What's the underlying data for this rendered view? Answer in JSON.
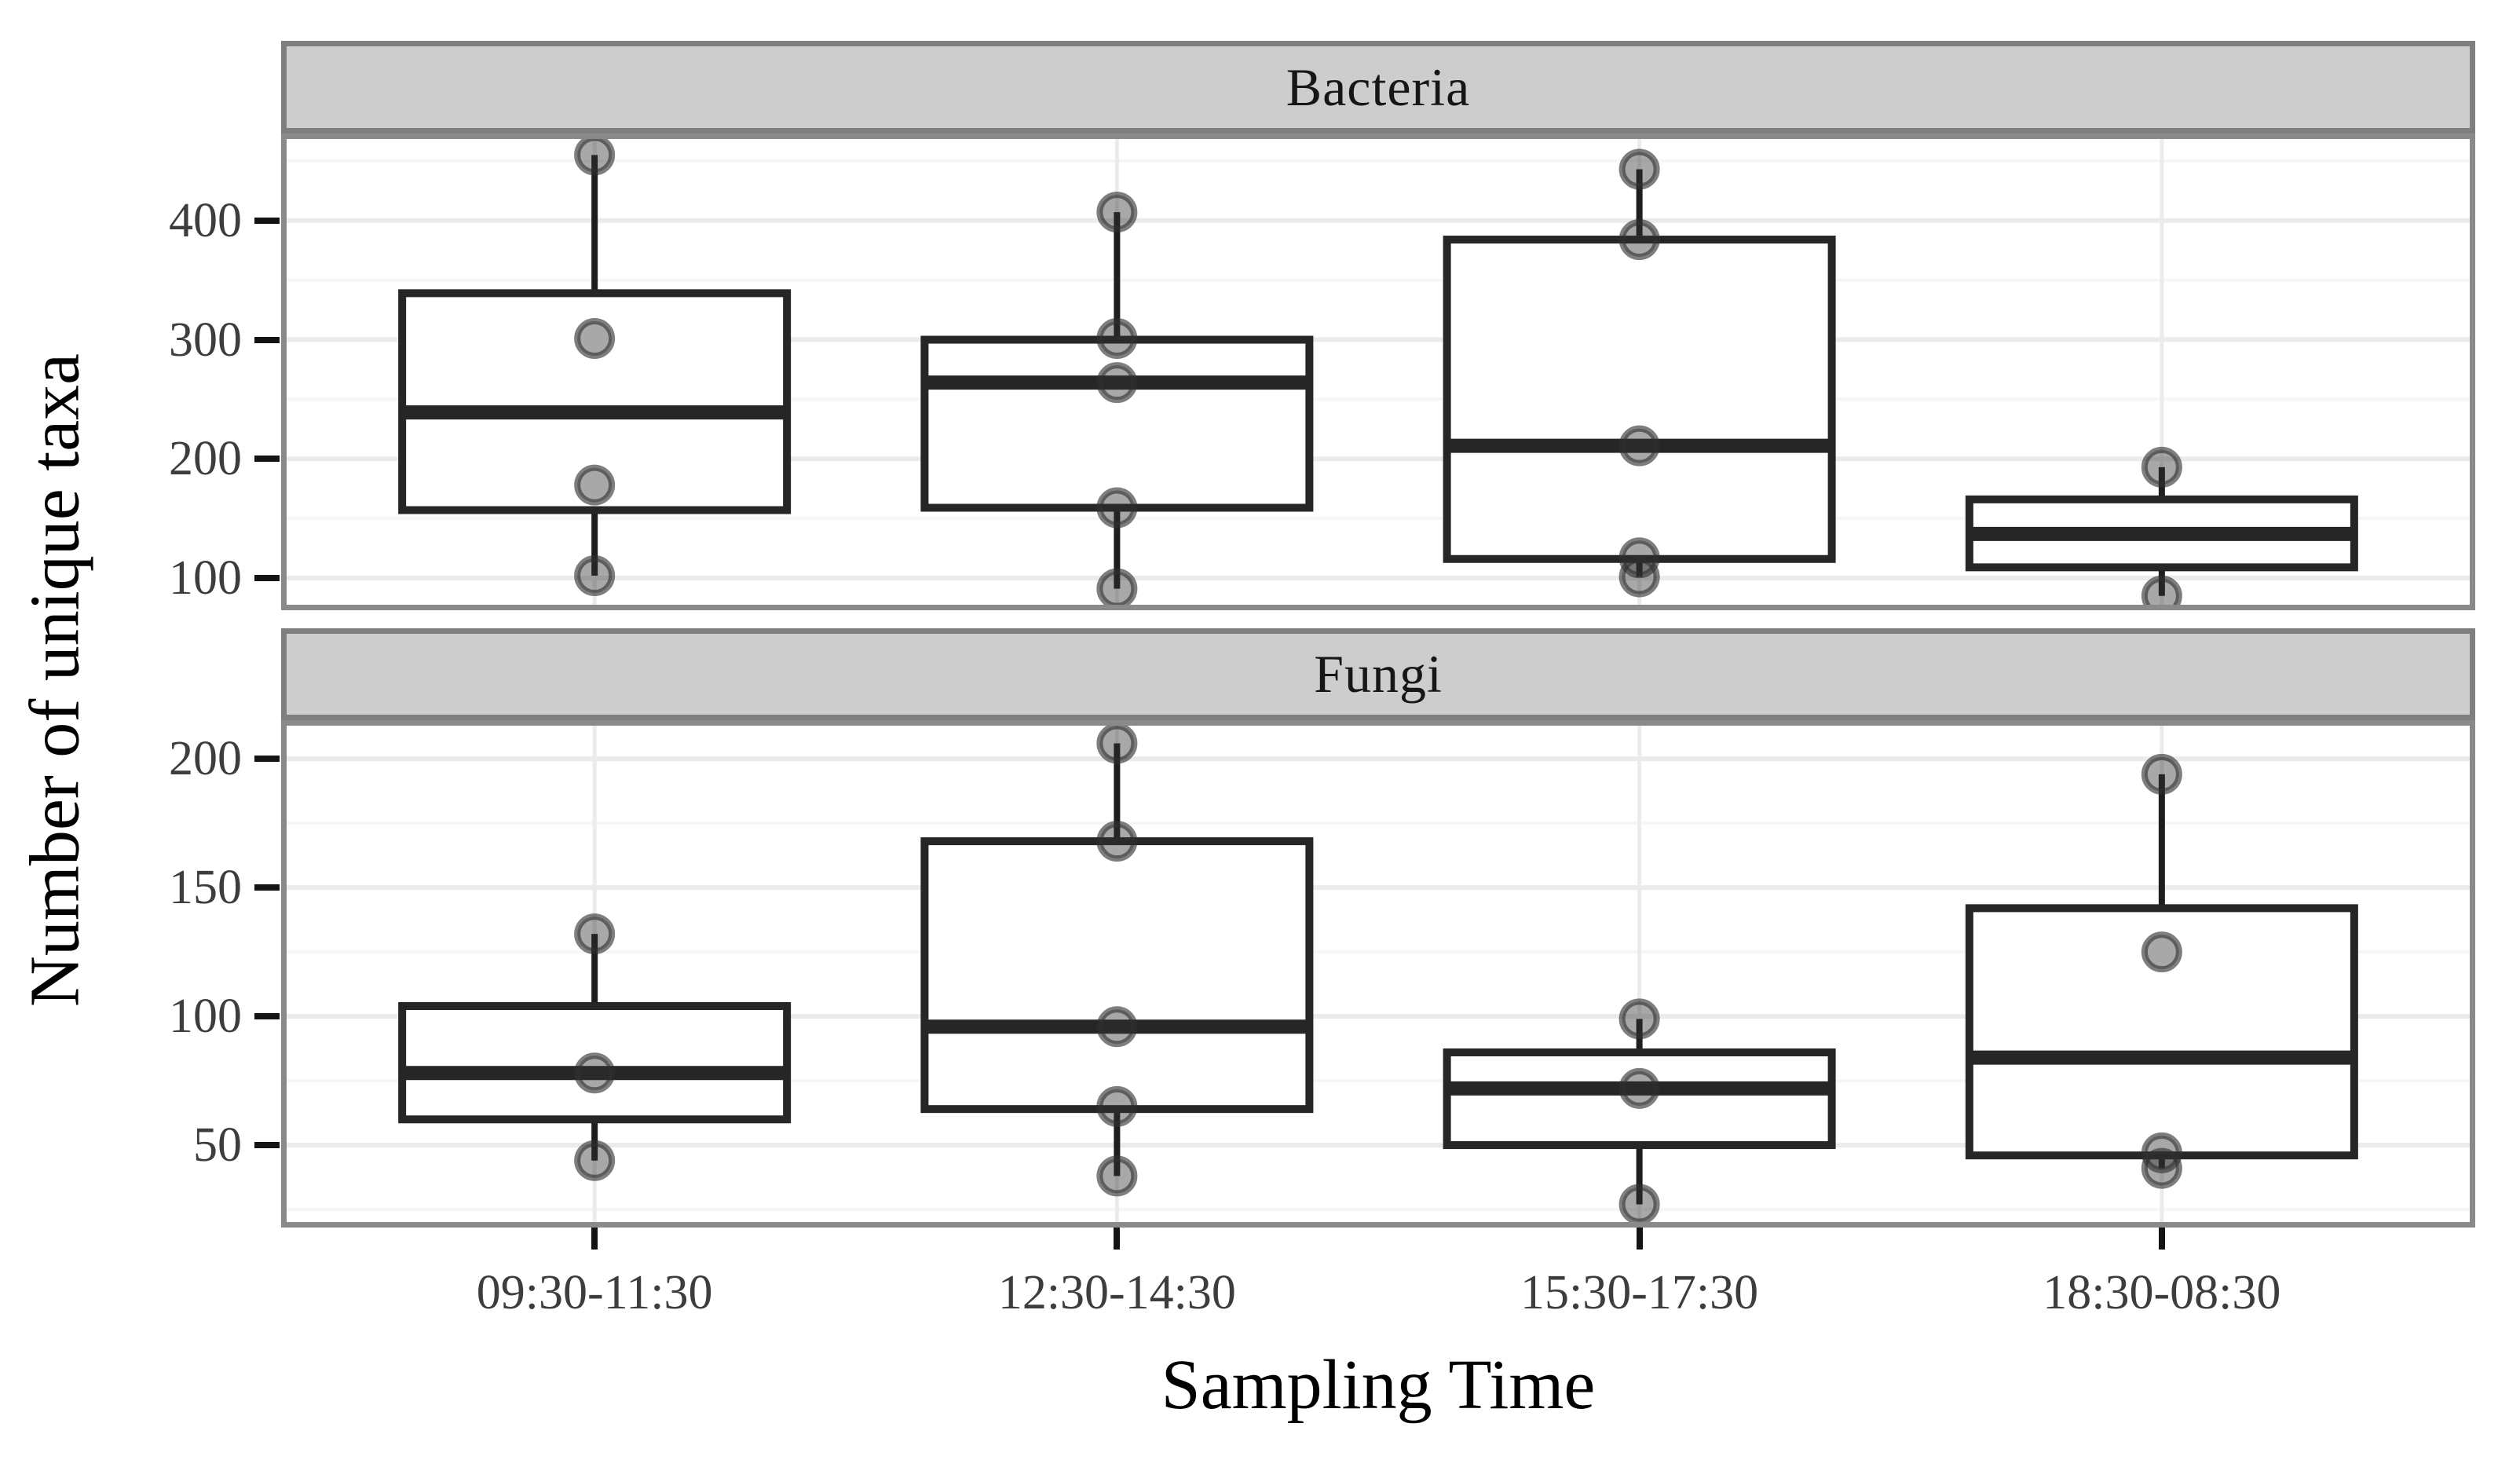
{
  "chart_data": {
    "type": "boxplot",
    "title": "",
    "xlabel": "Sampling Time",
    "ylabel": "Number of unique taxa",
    "categories": [
      "09:30-11:30",
      "12:30-14:30",
      "15:30-17:30",
      "18:30-08:30"
    ],
    "grid": true,
    "legend": false,
    "facets": [
      {
        "label": "Bacteria",
        "ylim": [
          73,
          473
        ],
        "yticks": [
          100,
          200,
          300,
          400
        ],
        "yticks_minor": [
          150,
          250,
          350,
          450
        ],
        "boxes": [
          {
            "category": "09:30-11:30",
            "whisker_low": 102,
            "q1": 157,
            "median": 239,
            "q3": 339,
            "whisker_high": 455,
            "points": [
              455,
              301,
              178,
              102
            ]
          },
          {
            "category": "12:30-14:30",
            "whisker_low": 91,
            "q1": 159,
            "median": 264,
            "q3": 300,
            "whisker_high": 407,
            "points": [
              407,
              301,
              264,
              159,
              91
            ]
          },
          {
            "category": "15:30-17:30",
            "whisker_low": 101,
            "q1": 116,
            "median": 211,
            "q3": 384,
            "whisker_high": 443,
            "points": [
              443,
              384,
              211,
              117,
              101
            ]
          },
          {
            "category": "18:30-08:30",
            "whisker_low": 85,
            "q1": 109,
            "median": 137,
            "q3": 166,
            "whisker_high": 193,
            "points": [
              193,
              85
            ]
          }
        ]
      },
      {
        "label": "Fungi",
        "ylim": [
          18,
          215
        ],
        "yticks": [
          50,
          100,
          150,
          200
        ],
        "yticks_minor": [
          25,
          75,
          125,
          175
        ],
        "boxes": [
          {
            "category": "09:30-11:30",
            "whisker_low": 44,
            "q1": 60,
            "median": 78,
            "q3": 104,
            "whisker_high": 132,
            "points": [
              132,
              78,
              44
            ]
          },
          {
            "category": "12:30-14:30",
            "whisker_low": 38,
            "q1": 64,
            "median": 96,
            "q3": 168,
            "whisker_high": 206,
            "points": [
              206,
              168,
              96,
              65,
              38
            ]
          },
          {
            "category": "15:30-17:30",
            "whisker_low": 27,
            "q1": 50,
            "median": 72,
            "q3": 86,
            "whisker_high": 99,
            "points": [
              99,
              72,
              27
            ]
          },
          {
            "category": "18:30-08:30",
            "whisker_low": 41,
            "q1": 46,
            "median": 84,
            "q3": 142,
            "whisker_high": 194,
            "points": [
              194,
              125,
              47,
              41
            ]
          }
        ]
      }
    ]
  },
  "style": {
    "strip_fill": "#CDCDCD",
    "strip_border": "#7F7F7F",
    "panel_border": "#8A8A8A",
    "box_stroke": "#262626",
    "whisker_color": "#1E1E1E",
    "point_color": "#2F2F2F",
    "grid_major": "#EBEBEB",
    "grid_minor": "#F6F6F6",
    "tick_mark_color": "#141414",
    "tick_label_color": "#3D3D3D",
    "title_color": "#000000"
  }
}
